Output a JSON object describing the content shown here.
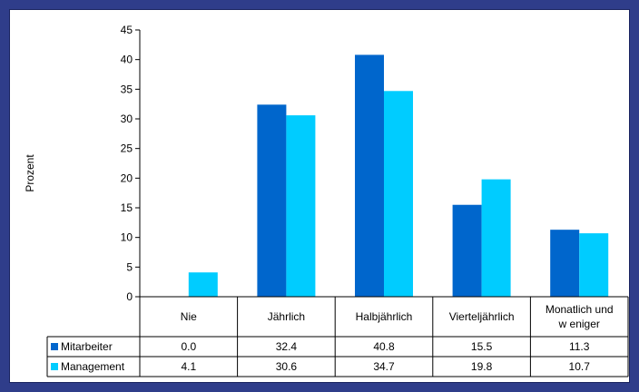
{
  "chart_data": {
    "type": "bar",
    "ylabel": "Prozent",
    "ylim": [
      0,
      45
    ],
    "yticks": [
      0,
      5,
      10,
      15,
      20,
      25,
      30,
      35,
      40,
      45
    ],
    "categories": [
      "Nie",
      "Jährlich",
      "Halbjährlich",
      "Vierteljährlich",
      "Monatlich und w eniger"
    ],
    "category_lines": [
      [
        "Nie"
      ],
      [
        "Jährlich"
      ],
      [
        "Halbjährlich"
      ],
      [
        "Vierteljährlich"
      ],
      [
        "Monatlich und",
        "w eniger"
      ]
    ],
    "series": [
      {
        "name": "Mitarbeiter",
        "color": "#0066cc",
        "values": [
          0.0,
          32.4,
          40.8,
          15.5,
          11.3
        ],
        "labels": [
          "0.0",
          "32.4",
          "40.8",
          "15.5",
          "11.3"
        ]
      },
      {
        "name": "Management",
        "color": "#00ccff",
        "values": [
          4.1,
          30.6,
          34.7,
          19.8,
          10.7
        ],
        "labels": [
          "4.1",
          "30.6",
          "34.7",
          "19.8",
          "10.7"
        ]
      }
    ],
    "grid": false,
    "legend": "data-table"
  }
}
